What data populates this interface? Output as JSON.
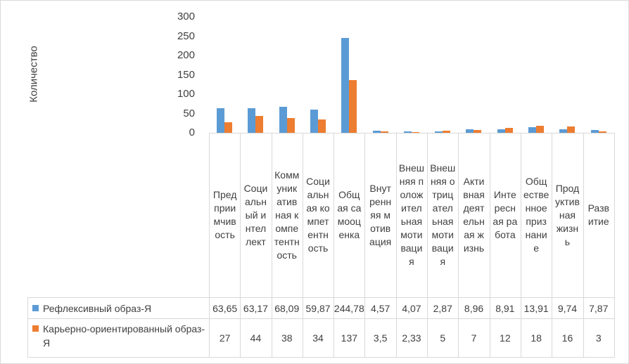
{
  "chart_data": {
    "type": "bar",
    "ylabel": "Количество",
    "xlabel": "",
    "ylim": [
      0,
      300
    ],
    "yticks": [
      "0",
      "50",
      "100",
      "150",
      "200",
      "250",
      "300"
    ],
    "grid": false,
    "legend_placement": "data-table",
    "categories": [
      "Предприимчивость",
      "Социальный интеллект",
      "Коммуникативная компетентность",
      "Социальная компетентность",
      "Общая самооценка",
      "Внутренняя мотивация",
      "Внешняя положительная мотивация",
      "Внешняя отрицательная мотивация",
      "Активная деятельная жизнь",
      "Интересная работа",
      "Общественное признание",
      "Продуктивная жизнь",
      "Развитие"
    ],
    "series": [
      {
        "name": "Рефлексивный образ-Я",
        "color": "#5B9BD5",
        "values": [
          63.65,
          63.17,
          68.09,
          59.87,
          244.78,
          4.57,
          4.07,
          2.87,
          8.96,
          8.91,
          13.91,
          9.74,
          7.87
        ],
        "labels": [
          "63,65",
          "63,17",
          "68,09",
          "59,87",
          "244,78",
          "4,57",
          "4,07",
          "2,87",
          "8,96",
          "8,91",
          "13,91",
          "9,74",
          "7,87"
        ]
      },
      {
        "name": "Карьерно-ориентированный образ-Я",
        "color": "#ED7D31",
        "values": [
          27,
          44,
          38,
          34,
          137,
          3.5,
          2.33,
          5,
          7,
          12,
          18,
          16,
          3
        ],
        "labels": [
          "27",
          "44",
          "38",
          "34",
          "137",
          "3,5",
          "2,33",
          "5",
          "7",
          "12",
          "18",
          "16",
          "3"
        ]
      }
    ]
  }
}
